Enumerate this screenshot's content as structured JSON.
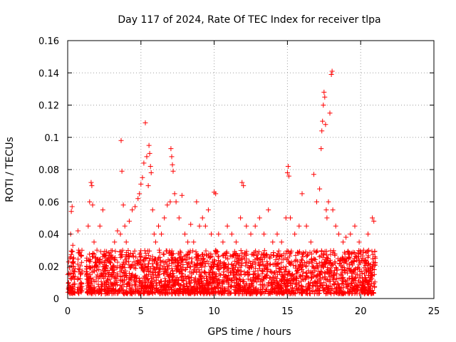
{
  "chart_data": {
    "type": "scatter",
    "title": "Day 117 of 2024, Rate Of TEC Index for receiver tlpa",
    "xlabel": "GPS time / hours",
    "ylabel": "ROTI / TECUs",
    "xlim": [
      0,
      25
    ],
    "ylim": [
      0,
      0.16
    ],
    "x_ticks": [
      0,
      5,
      10,
      15,
      20,
      25
    ],
    "x_tick_labels": [
      "0",
      "5",
      "10",
      "15",
      "20",
      "25"
    ],
    "y_ticks": [
      0,
      0.02,
      0.04,
      0.06,
      0.08,
      0.1,
      0.12,
      0.14,
      0.16
    ],
    "y_tick_labels": [
      "0",
      "0.02",
      "0.04",
      "0.06",
      "0.08",
      "0.1",
      "0.12",
      "0.14",
      "0.16"
    ],
    "grid": true,
    "marker": "+",
    "point_color": "#ff0000",
    "series": [
      {
        "points": [
          [
            0.05,
            0.006
          ],
          [
            0.1,
            0.015
          ],
          [
            0.15,
            0.025
          ],
          [
            0.2,
            0.04
          ],
          [
            0.25,
            0.054
          ],
          [
            0.3,
            0.057
          ],
          [
            0.35,
            0.033
          ],
          [
            0.4,
            0.02
          ],
          [
            0.45,
            0.012
          ],
          [
            0.7,
            0.042
          ],
          [
            0.75,
            0.03
          ],
          [
            0.8,
            0.018
          ],
          [
            0.85,
            0.009
          ],
          [
            0.9,
            0.005
          ],
          [
            1.3,
            0.02
          ],
          [
            1.4,
            0.045
          ],
          [
            1.5,
            0.06
          ],
          [
            1.6,
            0.072
          ],
          [
            1.65,
            0.07
          ],
          [
            1.7,
            0.058
          ],
          [
            1.8,
            0.035
          ],
          [
            1.9,
            0.025
          ],
          [
            2.0,
            0.03
          ],
          [
            2.2,
            0.045
          ],
          [
            2.4,
            0.055
          ],
          [
            2.6,
            0.02
          ],
          [
            2.8,
            0.015
          ],
          [
            3.0,
            0.025
          ],
          [
            3.2,
            0.035
          ],
          [
            3.4,
            0.042
          ],
          [
            3.6,
            0.04
          ],
          [
            3.65,
            0.098
          ],
          [
            3.7,
            0.079
          ],
          [
            3.8,
            0.058
          ],
          [
            3.9,
            0.045
          ],
          [
            4.0,
            0.035
          ],
          [
            4.2,
            0.048
          ],
          [
            4.4,
            0.055
          ],
          [
            4.6,
            0.057
          ],
          [
            4.8,
            0.062
          ],
          [
            4.9,
            0.065
          ],
          [
            5.0,
            0.071
          ],
          [
            5.1,
            0.075
          ],
          [
            5.2,
            0.084
          ],
          [
            5.3,
            0.109
          ],
          [
            5.4,
            0.088
          ],
          [
            5.5,
            0.07
          ],
          [
            5.55,
            0.095
          ],
          [
            5.6,
            0.09
          ],
          [
            5.65,
            0.082
          ],
          [
            5.7,
            0.078
          ],
          [
            5.8,
            0.055
          ],
          [
            5.9,
            0.04
          ],
          [
            6.0,
            0.035
          ],
          [
            6.2,
            0.045
          ],
          [
            6.4,
            0.04
          ],
          [
            6.6,
            0.05
          ],
          [
            6.8,
            0.058
          ],
          [
            7.0,
            0.06
          ],
          [
            7.05,
            0.093
          ],
          [
            7.1,
            0.088
          ],
          [
            7.15,
            0.083
          ],
          [
            7.2,
            0.079
          ],
          [
            7.3,
            0.065
          ],
          [
            7.4,
            0.06
          ],
          [
            7.6,
            0.05
          ],
          [
            7.8,
            0.064
          ],
          [
            8.0,
            0.04
          ],
          [
            8.2,
            0.035
          ],
          [
            8.4,
            0.046
          ],
          [
            8.6,
            0.035
          ],
          [
            8.8,
            0.06
          ],
          [
            9.0,
            0.045
          ],
          [
            9.2,
            0.05
          ],
          [
            9.4,
            0.045
          ],
          [
            9.6,
            0.055
          ],
          [
            9.8,
            0.04
          ],
          [
            10.0,
            0.066
          ],
          [
            10.1,
            0.065
          ],
          [
            10.3,
            0.04
          ],
          [
            10.6,
            0.035
          ],
          [
            10.9,
            0.045
          ],
          [
            11.2,
            0.04
          ],
          [
            11.5,
            0.035
          ],
          [
            11.8,
            0.05
          ],
          [
            11.9,
            0.072
          ],
          [
            12.0,
            0.07
          ],
          [
            12.2,
            0.045
          ],
          [
            12.5,
            0.04
          ],
          [
            12.8,
            0.045
          ],
          [
            13.1,
            0.05
          ],
          [
            13.4,
            0.04
          ],
          [
            13.7,
            0.055
          ],
          [
            14.0,
            0.035
          ],
          [
            14.3,
            0.04
          ],
          [
            14.6,
            0.035
          ],
          [
            14.9,
            0.05
          ],
          [
            15.0,
            0.078
          ],
          [
            15.05,
            0.082
          ],
          [
            15.1,
            0.076
          ],
          [
            15.2,
            0.05
          ],
          [
            15.5,
            0.04
          ],
          [
            15.8,
            0.045
          ],
          [
            16.0,
            0.065
          ],
          [
            16.3,
            0.045
          ],
          [
            16.6,
            0.035
          ],
          [
            16.8,
            0.077
          ],
          [
            17.0,
            0.06
          ],
          [
            17.2,
            0.068
          ],
          [
            17.3,
            0.093
          ],
          [
            17.35,
            0.104
          ],
          [
            17.4,
            0.11
          ],
          [
            17.45,
            0.12
          ],
          [
            17.5,
            0.128
          ],
          [
            17.55,
            0.125
          ],
          [
            17.6,
            0.108
          ],
          [
            17.65,
            0.055
          ],
          [
            17.7,
            0.05
          ],
          [
            17.8,
            0.06
          ],
          [
            17.9,
            0.115
          ],
          [
            18.0,
            0.139
          ],
          [
            18.05,
            0.141
          ],
          [
            18.1,
            0.055
          ],
          [
            18.3,
            0.045
          ],
          [
            18.5,
            0.04
          ],
          [
            18.8,
            0.035
          ],
          [
            19.0,
            0.038
          ],
          [
            19.3,
            0.04
          ],
          [
            19.6,
            0.045
          ],
          [
            19.9,
            0.035
          ],
          [
            20.2,
            0.03
          ],
          [
            20.5,
            0.04
          ],
          [
            20.8,
            0.05
          ],
          [
            20.9,
            0.048
          ],
          [
            21.0,
            0.025
          ]
        ],
        "dense_band": {
          "x": [
            0,
            21
          ],
          "y": [
            0.003,
            0.03
          ],
          "gaps_hours": [
            [
              0.5,
              0.65
            ],
            [
              1.0,
              1.25
            ]
          ]
        }
      }
    ]
  }
}
